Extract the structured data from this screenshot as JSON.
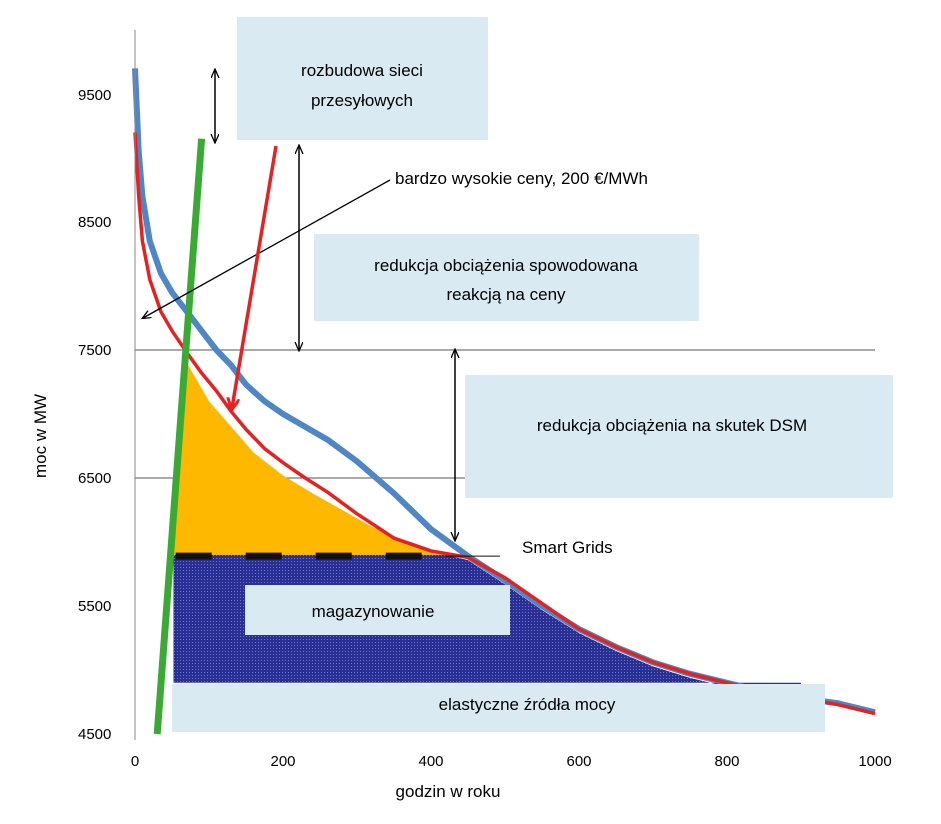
{
  "chart_data": {
    "type": "area",
    "xlabel": "godzin w roku",
    "ylabel": "moc w MW",
    "xlim": [
      0,
      1000
    ],
    "ylim": [
      4500,
      10000
    ],
    "x_ticks": [
      "0",
      "200",
      "400",
      "600",
      "800",
      "1000"
    ],
    "y_ticks": [
      "4500",
      "5500",
      "6500",
      "7500",
      "8500",
      "9500"
    ],
    "gridlines_y": [
      6500,
      7500
    ],
    "series": [
      {
        "color": "#4f86c6",
        "x": [
          0,
          5,
          10,
          20,
          35,
          50,
          70,
          90,
          110,
          130,
          150,
          175,
          200,
          230,
          260,
          300,
          350,
          400,
          450,
          500,
          550,
          600,
          650,
          700,
          750,
          800,
          850,
          900,
          950,
          1000
        ],
        "y": [
          9700,
          9050,
          8700,
          8350,
          8100,
          7950,
          7800,
          7650,
          7500,
          7380,
          7230,
          7100,
          7000,
          6900,
          6800,
          6630,
          6380,
          6100,
          5890,
          5700,
          5500,
          5320,
          5180,
          5060,
          4970,
          4900,
          4830,
          4780,
          4740,
          4670
        ]
      },
      {
        "color": "#e32222",
        "x": [
          0,
          5,
          10,
          20,
          35,
          50,
          70,
          90,
          110,
          130,
          150,
          175,
          200,
          230,
          260,
          300,
          350,
          400,
          450,
          500,
          550,
          600,
          650,
          700,
          750,
          800,
          850,
          900,
          950,
          1000
        ],
        "y": [
          9200,
          8700,
          8350,
          8050,
          7800,
          7650,
          7480,
          7320,
          7180,
          7020,
          6880,
          6730,
          6620,
          6500,
          6390,
          6220,
          6030,
          5930,
          5880,
          5720,
          5520,
          5320,
          5180,
          5060,
          4970,
          4900,
          4830,
          4780,
          4730,
          4660
        ]
      }
    ],
    "green_line": {
      "color": "#3aaa35",
      "x": [
        30,
        90
      ],
      "y": [
        4500,
        9150
      ]
    },
    "orange_area": {
      "color": "#ffb800",
      "x": [
        65,
        80,
        100,
        130,
        160,
        200,
        240,
        280,
        320,
        360,
        400,
        420
      ],
      "y": [
        7450,
        7300,
        7100,
        6900,
        6700,
        6520,
        6380,
        6250,
        6120,
        6020,
        5930,
        5900
      ]
    },
    "storage_area": {
      "color": "#2a2f93",
      "x": [
        52,
        420,
        500,
        600,
        700,
        800,
        900
      ],
      "y_top": 5900,
      "y_bottom": 4900
    },
    "dashed_line": {
      "x": [
        55,
        420
      ],
      "y": 5890
    },
    "boxes": [
      {
        "text": [
          "rozbudowa  sieci",
          "przesyłowych"
        ]
      },
      {
        "text": [
          "redukcja obciążenia spowodowana",
          "reakcją na ceny"
        ]
      },
      {
        "text": [
          "redukcja obciążenia  na skutek DSM"
        ]
      },
      {
        "text": [
          "magazynowanie"
        ]
      },
      {
        "text": [
          "elastyczne źródła mocy"
        ]
      }
    ],
    "annotations": [
      "bardzo wysokie ceny,  200 €/MWh",
      "Smart Grids"
    ]
  }
}
